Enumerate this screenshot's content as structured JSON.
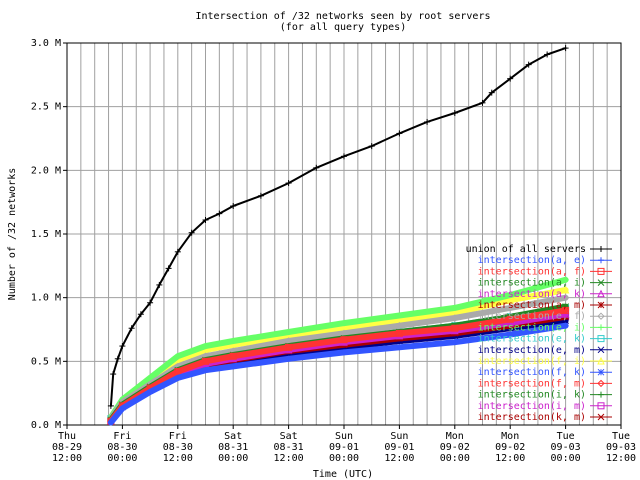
{
  "chart_data": {
    "type": "line",
    "title": "Intersection of /32 networks seen by root servers",
    "subtitle": "(for all query types)",
    "xlabel": "Time (UTC)",
    "ylabel": "Number of /32 networks",
    "ylim": [
      0,
      3000000
    ],
    "y_ticks": [
      {
        "value": 0,
        "label": "0.0 M"
      },
      {
        "value": 500000,
        "label": "0.5 M"
      },
      {
        "value": 1000000,
        "label": "1.0 M"
      },
      {
        "value": 1500000,
        "label": "1.5 M"
      },
      {
        "value": 2000000,
        "label": "2.0 M"
      },
      {
        "value": 2500000,
        "label": "2.5 M"
      },
      {
        "value": 3000000,
        "label": "3.0 M"
      }
    ],
    "xlim": [
      "08-29 12:00",
      "09-03 12:00"
    ],
    "x_ticks": [
      {
        "value": 0,
        "label": [
          "Thu",
          "08-29",
          "12:00"
        ]
      },
      {
        "value": 12,
        "label": [
          "Fri",
          "08-30",
          "00:00"
        ]
      },
      {
        "value": 24,
        "label": [
          "Fri",
          "08-30",
          "12:00"
        ]
      },
      {
        "value": 36,
        "label": [
          "Sat",
          "08-31",
          "00:00"
        ]
      },
      {
        "value": 48,
        "label": [
          "Sat",
          "08-31",
          "12:00"
        ]
      },
      {
        "value": 60,
        "label": [
          "Sun",
          "09-01",
          "00:00"
        ]
      },
      {
        "value": 72,
        "label": [
          "Sun",
          "09-01",
          "12:00"
        ]
      },
      {
        "value": 84,
        "label": [
          "Mon",
          "09-02",
          "00:00"
        ]
      },
      {
        "value": 96,
        "label": [
          "Mon",
          "09-02",
          "12:00"
        ]
      },
      {
        "value": 108,
        "label": [
          "Tue",
          "09-03",
          "00:00"
        ]
      },
      {
        "value": 120,
        "label": [
          "Tue",
          "09-03",
          "12:00"
        ]
      }
    ],
    "grid": true,
    "legend_position": "right",
    "series": [
      {
        "name": "union of all servers",
        "color": "#000000",
        "marker": "plus-icon",
        "x": [
          9.5,
          10,
          11,
          12,
          14,
          16,
          18,
          20,
          22,
          24,
          27,
          30,
          33,
          36,
          42,
          48,
          54,
          60,
          66,
          72,
          78,
          84,
          90,
          92,
          96,
          100,
          104,
          108
        ],
        "y": [
          150000,
          400000,
          520000,
          620000,
          760000,
          870000,
          960000,
          1100000,
          1230000,
          1360000,
          1510000,
          1610000,
          1660000,
          1720000,
          1800000,
          1900000,
          2020000,
          2110000,
          2190000,
          2290000,
          2380000,
          2450000,
          2530000,
          2610000,
          2720000,
          2830000,
          2910000,
          2960000
        ]
      },
      {
        "name": "intersection(a, e)",
        "color": "#3355ff",
        "marker": "plus-icon",
        "x": [
          9.5,
          12,
          18,
          24,
          30,
          36,
          48,
          60,
          72,
          84,
          96,
          108
        ],
        "y": [
          20000,
          130000,
          260000,
          370000,
          430000,
          460000,
          520000,
          570000,
          610000,
          650000,
          710000,
          780000
        ]
      },
      {
        "name": "intersection(a, f)",
        "color": "#ff3333",
        "marker": "square-icon",
        "x": [
          9.5,
          12,
          18,
          24,
          30,
          36,
          48,
          60,
          72,
          84,
          96,
          108
        ],
        "y": [
          30000,
          150000,
          290000,
          420000,
          500000,
          540000,
          610000,
          670000,
          720000,
          760000,
          830000,
          900000
        ]
      },
      {
        "name": "intersection(a, i)",
        "color": "#228822",
        "marker": "x-icon",
        "x": [
          9.5,
          12,
          18,
          24,
          30,
          36,
          48,
          60,
          72,
          84,
          96,
          108
        ],
        "y": [
          40000,
          160000,
          300000,
          430000,
          510000,
          550000,
          620000,
          680000,
          730000,
          780000,
          850000,
          930000
        ]
      },
      {
        "name": "intersection(a, k)",
        "color": "#cc22cc",
        "marker": "triangle-icon",
        "x": [
          9.5,
          12,
          18,
          24,
          30,
          36,
          48,
          60,
          72,
          84,
          96,
          108
        ],
        "y": [
          30000,
          150000,
          280000,
          410000,
          480000,
          520000,
          590000,
          650000,
          700000,
          740000,
          800000,
          870000
        ]
      },
      {
        "name": "intersection(a, m)",
        "color": "#aa0000",
        "marker": "star-icon",
        "x": [
          9.5,
          12,
          18,
          24,
          30,
          36,
          48,
          60,
          72,
          84,
          96,
          108
        ],
        "y": [
          30000,
          150000,
          280000,
          400000,
          470000,
          510000,
          580000,
          630000,
          680000,
          720000,
          780000,
          850000
        ]
      },
      {
        "name": "intersection(e, f)",
        "color": "#aaaaaa",
        "marker": "diamond-icon",
        "x": [
          9.5,
          12,
          18,
          24,
          30,
          36,
          48,
          60,
          72,
          84,
          96,
          108
        ],
        "y": [
          50000,
          180000,
          320000,
          460000,
          540000,
          580000,
          660000,
          720000,
          780000,
          840000,
          920000,
          1000000
        ]
      },
      {
        "name": "intersection(e, i)",
        "color": "#66ff66",
        "marker": "plus-icon",
        "x": [
          9.5,
          12,
          18,
          24,
          30,
          36,
          48,
          60,
          72,
          84,
          96,
          108
        ],
        "y": [
          60000,
          200000,
          370000,
          540000,
          620000,
          660000,
          730000,
          800000,
          860000,
          920000,
          1020000,
          1140000
        ]
      },
      {
        "name": "intersection(e, k)",
        "color": "#33cccc",
        "marker": "square-icon",
        "x": [
          9.5,
          12,
          18,
          24,
          30,
          36,
          48,
          60,
          72,
          84,
          96,
          108
        ],
        "y": [
          50000,
          170000,
          300000,
          440000,
          510000,
          550000,
          620000,
          680000,
          730000,
          780000,
          850000,
          920000
        ]
      },
      {
        "name": "intersection(e, m)",
        "color": "#000088",
        "marker": "x-icon",
        "x": [
          9.5,
          12,
          18,
          24,
          30,
          36,
          48,
          60,
          72,
          84,
          96,
          108
        ],
        "y": [
          30000,
          140000,
          270000,
          390000,
          460000,
          490000,
          560000,
          610000,
          660000,
          700000,
          760000,
          820000
        ]
      },
      {
        "name": "intersection(f, i)",
        "color": "#ffff44",
        "marker": "triangle-icon",
        "x": [
          9.5,
          12,
          18,
          24,
          30,
          36,
          48,
          60,
          72,
          84,
          96,
          108
        ],
        "y": [
          60000,
          190000,
          350000,
          510000,
          590000,
          630000,
          700000,
          760000,
          820000,
          880000,
          980000,
          1060000
        ]
      },
      {
        "name": "intersection(f, k)",
        "color": "#3355ff",
        "marker": "star-icon",
        "x": [
          9.5,
          12,
          18,
          24,
          30,
          36,
          48,
          60,
          72,
          84,
          96,
          108
        ],
        "y": [
          40000,
          160000,
          290000,
          410000,
          480000,
          520000,
          590000,
          650000,
          700000,
          750000,
          810000,
          880000
        ]
      },
      {
        "name": "intersection(f, m)",
        "color": "#ff3333",
        "marker": "diamond-icon",
        "x": [
          9.5,
          12,
          18,
          24,
          30,
          36,
          48,
          60,
          72,
          84,
          96,
          108
        ],
        "y": [
          30000,
          150000,
          280000,
          400000,
          470000,
          510000,
          570000,
          630000,
          670000,
          720000,
          780000,
          840000
        ]
      },
      {
        "name": "intersection(i, k)",
        "color": "#228822",
        "marker": "plus-icon",
        "x": [
          9.5,
          12,
          18,
          24,
          30,
          36,
          48,
          60,
          72,
          84,
          96,
          108
        ],
        "y": [
          40000,
          160000,
          300000,
          430000,
          500000,
          540000,
          610000,
          670000,
          720000,
          770000,
          840000,
          910000
        ]
      },
      {
        "name": "intersection(i, m)",
        "color": "#cc22cc",
        "marker": "square-icon",
        "x": [
          9.5,
          12,
          18,
          24,
          30,
          36,
          48,
          60,
          72,
          84,
          96,
          108
        ],
        "y": [
          30000,
          150000,
          280000,
          400000,
          470000,
          500000,
          570000,
          630000,
          680000,
          720000,
          790000,
          850000
        ]
      },
      {
        "name": "intersection(k, m)",
        "color": "#aa0000",
        "marker": "x-icon",
        "x": [
          9.5,
          12,
          18,
          24,
          30,
          36,
          48,
          60,
          72,
          84,
          96,
          108
        ],
        "y": [
          30000,
          150000,
          280000,
          400000,
          470000,
          510000,
          580000,
          640000,
          690000,
          740000,
          810000,
          900000
        ]
      }
    ]
  }
}
